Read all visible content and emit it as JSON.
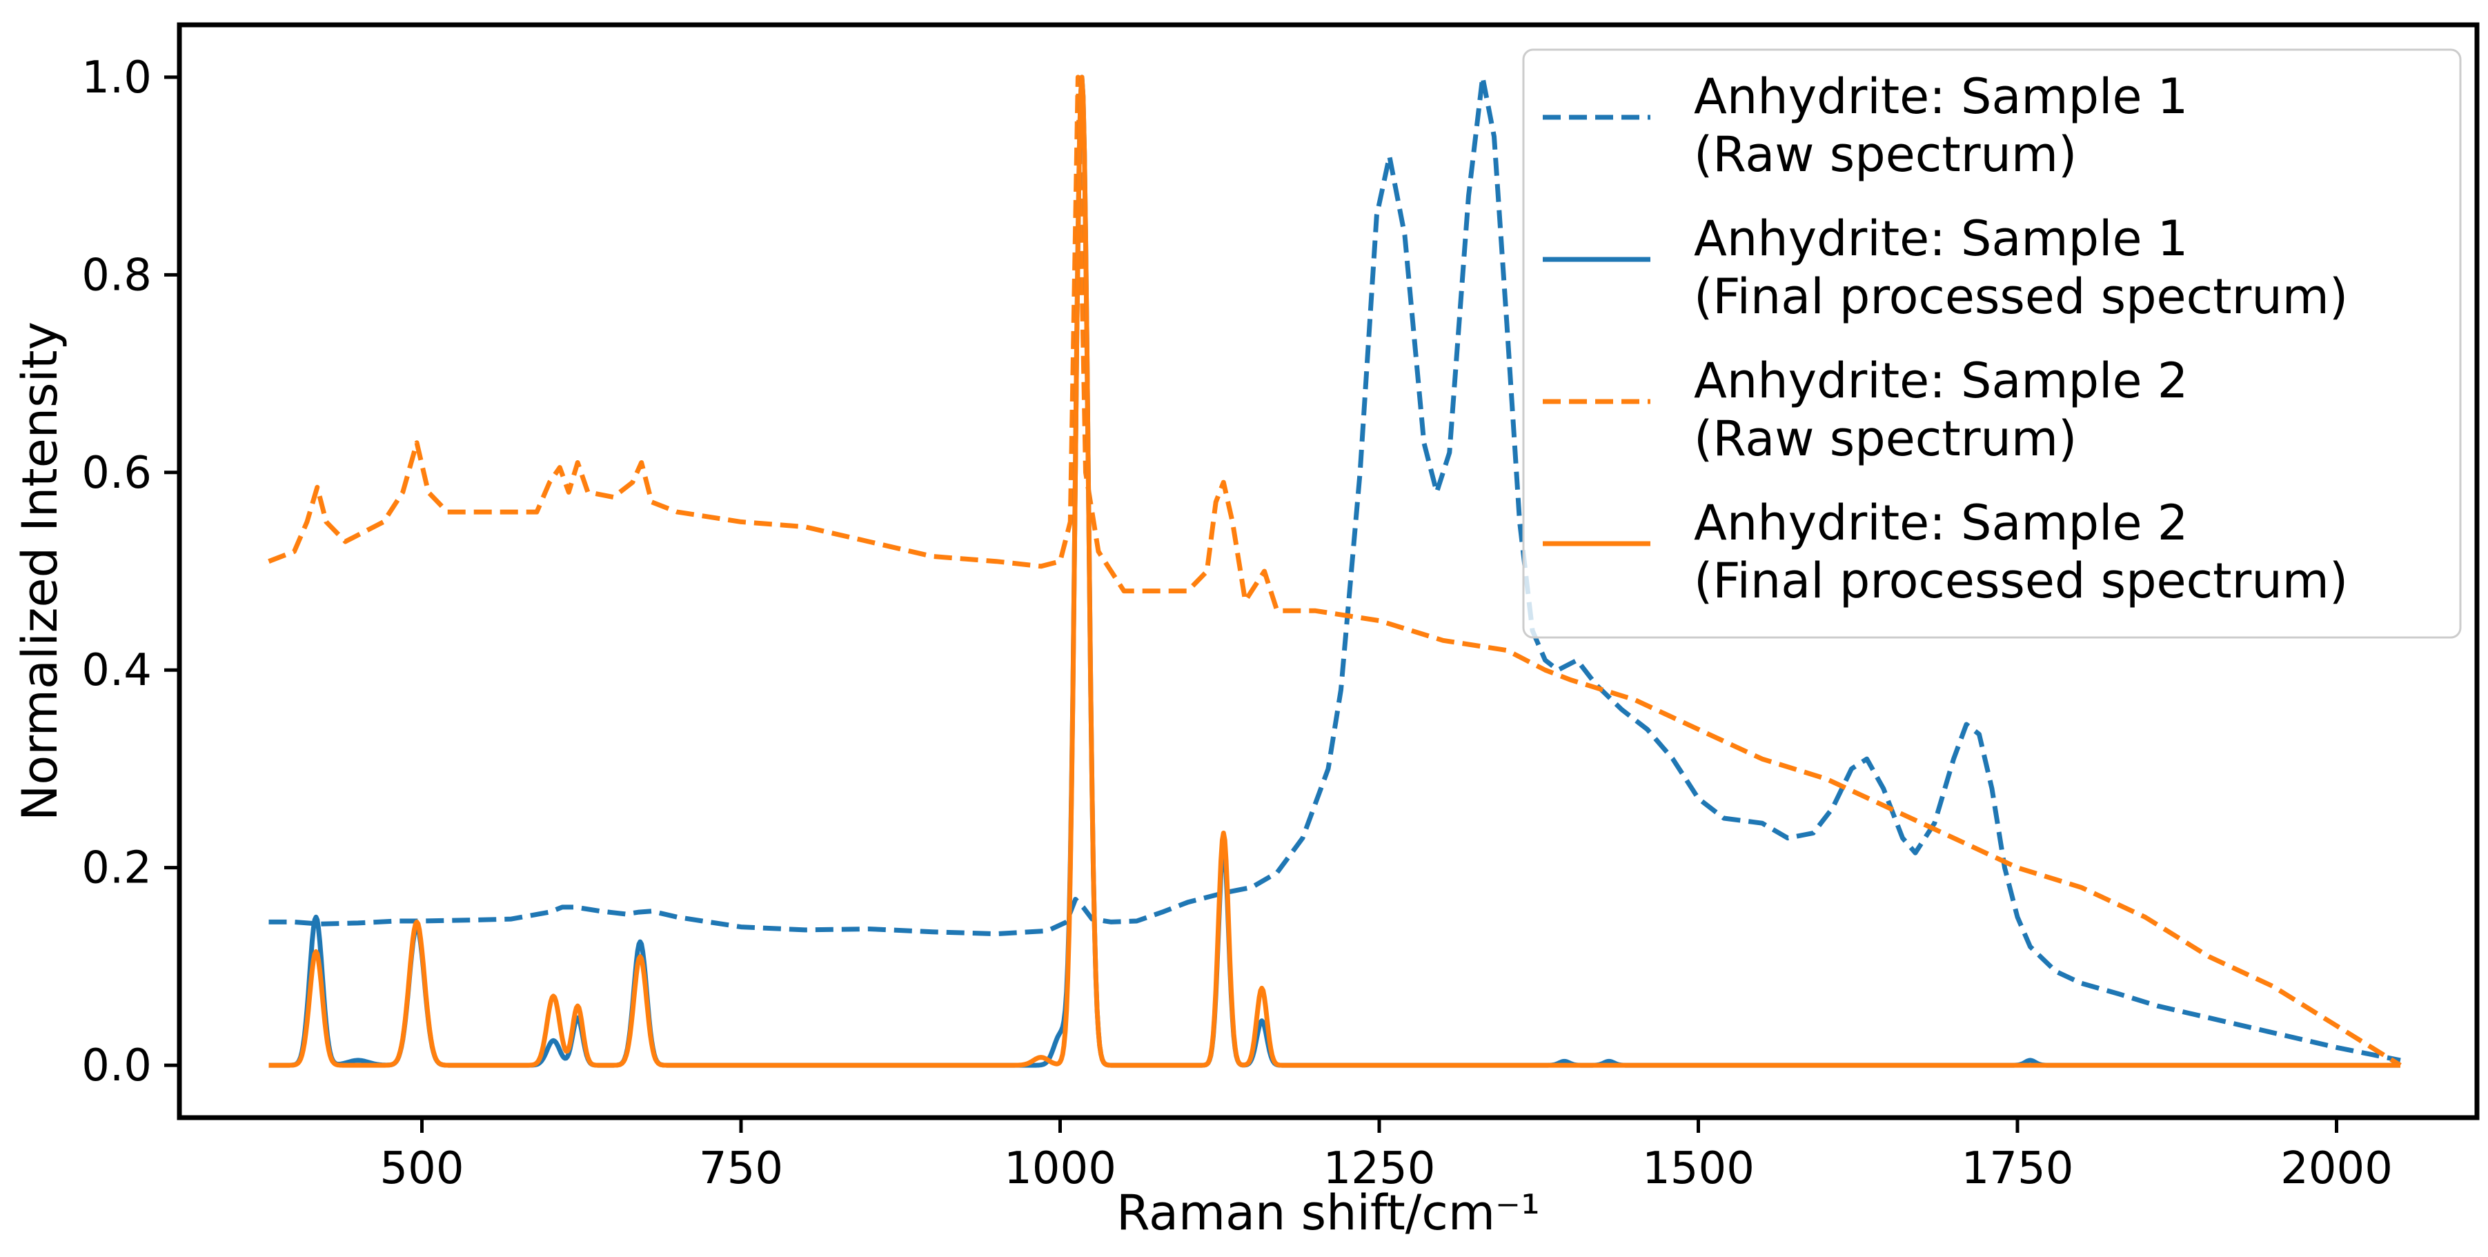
{
  "chart_data": {
    "type": "line",
    "title": "",
    "xlabel": "Raman shift/cm⁻¹",
    "ylabel": "Normalized Intensity",
    "xlim": [
      310,
      2110
    ],
    "ylim": [
      -0.053,
      1.053
    ],
    "x_ticks": [
      500,
      750,
      1000,
      1250,
      1500,
      1750,
      2000
    ],
    "y_ticks": [
      0.0,
      0.2,
      0.4,
      0.6,
      0.8,
      1.0
    ],
    "x_tick_labels": [
      "500",
      "750",
      "1000",
      "1250",
      "1500",
      "1750",
      "2000"
    ],
    "y_tick_labels": [
      "0.0",
      "0.2",
      "0.4",
      "0.6",
      "0.8",
      "1.0"
    ],
    "grid": false,
    "legend_position": "top-right",
    "series": [
      {
        "name": "Anhydrite: Sample 1 (Raw spectrum)",
        "legend_lines": [
          "Anhydrite: Sample 1",
          "(Raw spectrum)"
        ],
        "color": "#1f77b4",
        "style": "dashed",
        "x": [
          380,
          400,
          420,
          450,
          480,
          500,
          540,
          570,
          600,
          610,
          620,
          640,
          660,
          670,
          680,
          700,
          750,
          800,
          850,
          900,
          950,
          990,
          1005,
          1012,
          1018,
          1025,
          1040,
          1060,
          1080,
          1100,
          1130,
          1150,
          1170,
          1190,
          1210,
          1220,
          1235,
          1248,
          1258,
          1270,
          1285,
          1295,
          1305,
          1320,
          1331,
          1340,
          1350,
          1360,
          1370,
          1380,
          1390,
          1405,
          1420,
          1440,
          1460,
          1480,
          1500,
          1520,
          1550,
          1570,
          1590,
          1605,
          1620,
          1632,
          1645,
          1660,
          1670,
          1685,
          1700,
          1710,
          1720,
          1730,
          1740,
          1750,
          1760,
          1780,
          1800,
          1830,
          1860,
          1900,
          1950,
          2000,
          2050
        ],
        "values": [
          0.145,
          0.145,
          0.143,
          0.144,
          0.146,
          0.146,
          0.147,
          0.148,
          0.155,
          0.16,
          0.16,
          0.156,
          0.153,
          0.155,
          0.156,
          0.15,
          0.14,
          0.137,
          0.138,
          0.135,
          0.133,
          0.136,
          0.145,
          0.168,
          0.16,
          0.148,
          0.145,
          0.146,
          0.155,
          0.165,
          0.175,
          0.18,
          0.195,
          0.23,
          0.3,
          0.38,
          0.6,
          0.86,
          0.92,
          0.84,
          0.63,
          0.58,
          0.62,
          0.88,
          1.0,
          0.94,
          0.75,
          0.55,
          0.44,
          0.41,
          0.4,
          0.41,
          0.385,
          0.36,
          0.34,
          0.31,
          0.27,
          0.25,
          0.245,
          0.23,
          0.235,
          0.26,
          0.3,
          0.31,
          0.28,
          0.23,
          0.215,
          0.245,
          0.31,
          0.345,
          0.335,
          0.28,
          0.2,
          0.15,
          0.12,
          0.095,
          0.083,
          0.072,
          0.06,
          0.048,
          0.033,
          0.018,
          0.005
        ]
      },
      {
        "name": "Anhydrite: Sample 1 (Final processed spectrum)",
        "legend_lines": [
          "Anhydrite: Sample 1",
          "(Final processed spectrum)"
        ],
        "color": "#1f77b4",
        "style": "solid",
        "peaks": [
          [
            417,
            0.15,
            5
          ],
          [
            450,
            0.005,
            8
          ],
          [
            496,
            0.14,
            6
          ],
          [
            603,
            0.025,
            5
          ],
          [
            622,
            0.048,
            4
          ],
          [
            671,
            0.125,
            5
          ],
          [
            1000,
            0.03,
            5
          ],
          [
            1017,
            1.0,
            5
          ],
          [
            1128,
            0.22,
            4
          ],
          [
            1158,
            0.045,
            4
          ],
          [
            1395,
            0.004,
            4
          ],
          [
            1430,
            0.004,
            4
          ],
          [
            1760,
            0.005,
            4
          ]
        ]
      },
      {
        "name": "Anhydrite: Sample 2 (Raw spectrum)",
        "legend_lines": [
          "Anhydrite: Sample 2",
          "(Raw spectrum)"
        ],
        "color": "#ff7f0e",
        "style": "dashed",
        "x": [
          380,
          400,
          410,
          418,
          425,
          440,
          470,
          485,
          496,
          505,
          520,
          560,
          590,
          600,
          608,
          615,
          622,
          630,
          650,
          665,
          672,
          680,
          700,
          750,
          800,
          850,
          900,
          950,
          985,
          1000,
          1008,
          1014,
          1020,
          1030,
          1050,
          1080,
          1100,
          1115,
          1122,
          1128,
          1135,
          1145,
          1155,
          1160,
          1170,
          1200,
          1250,
          1300,
          1350,
          1380,
          1400,
          1450,
          1500,
          1550,
          1600,
          1650,
          1700,
          1750,
          1800,
          1850,
          1900,
          1950,
          2000,
          2050
        ],
        "values": [
          0.51,
          0.52,
          0.55,
          0.585,
          0.55,
          0.53,
          0.55,
          0.58,
          0.63,
          0.58,
          0.56,
          0.56,
          0.56,
          0.59,
          0.605,
          0.58,
          0.61,
          0.58,
          0.575,
          0.59,
          0.61,
          0.57,
          0.56,
          0.55,
          0.545,
          0.53,
          0.515,
          0.51,
          0.505,
          0.51,
          0.55,
          1.0,
          0.6,
          0.52,
          0.48,
          0.48,
          0.48,
          0.5,
          0.57,
          0.59,
          0.55,
          0.47,
          0.49,
          0.5,
          0.46,
          0.46,
          0.45,
          0.43,
          0.42,
          0.4,
          0.39,
          0.37,
          0.34,
          0.31,
          0.29,
          0.26,
          0.23,
          0.2,
          0.18,
          0.15,
          0.11,
          0.08,
          0.04,
          0.0
        ]
      },
      {
        "name": "Anhydrite: Sample 2 (Final processed spectrum)",
        "legend_lines": [
          "Anhydrite: Sample 2",
          "(Final processed spectrum)"
        ],
        "color": "#ff7f0e",
        "style": "solid",
        "peaks": [
          [
            417,
            0.115,
            5
          ],
          [
            496,
            0.145,
            6
          ],
          [
            603,
            0.07,
            5
          ],
          [
            622,
            0.06,
            4
          ],
          [
            671,
            0.11,
            5
          ],
          [
            985,
            0.008,
            6
          ],
          [
            1017,
            1.0,
            5
          ],
          [
            1128,
            0.235,
            4
          ],
          [
            1158,
            0.078,
            4
          ]
        ]
      }
    ]
  }
}
